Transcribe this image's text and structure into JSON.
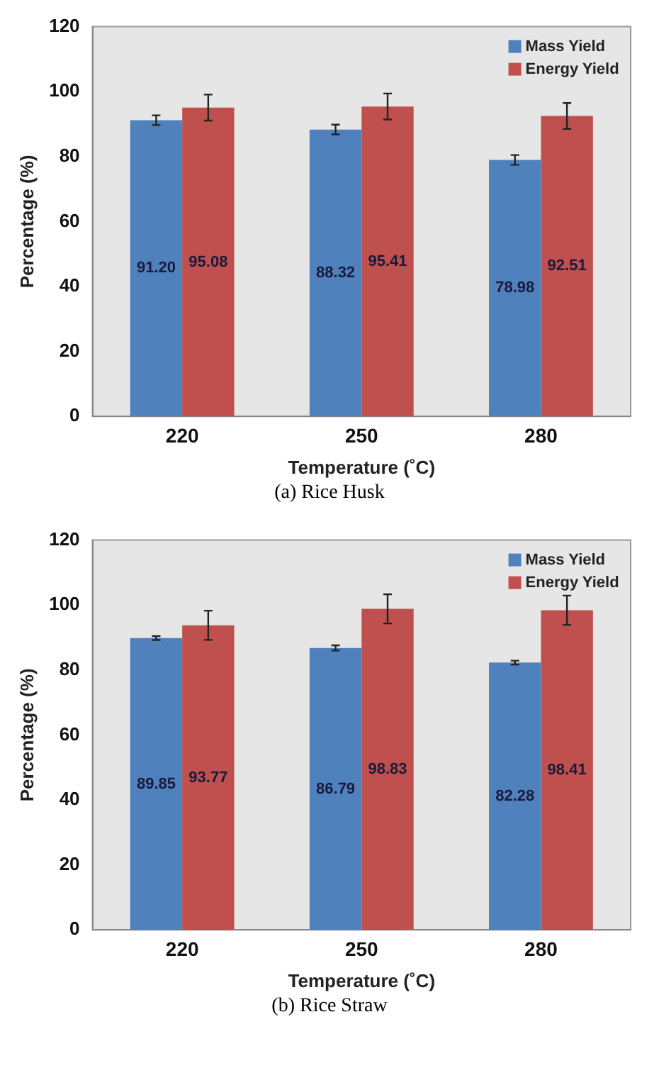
{
  "chart_data": [
    {
      "type": "bar",
      "xlabel": "Temperature (˚C)",
      "ylabel": "Percentage (%)",
      "categories": [
        "220",
        "250",
        "280"
      ],
      "series": [
        {
          "name": "Mass Yield",
          "color": "#4f81bd",
          "values": [
            91.2,
            88.32,
            78.98
          ],
          "value_labels": [
            "91.20",
            "88.32",
            "78.98"
          ],
          "errors": [
            1.5,
            1.5,
            1.5
          ]
        },
        {
          "name": "Energy Yield",
          "color": "#c0504d",
          "values": [
            95.08,
            95.41,
            92.51
          ],
          "value_labels": [
            "95.08",
            "95.41",
            "92.51"
          ],
          "errors": [
            4,
            4,
            4
          ]
        }
      ],
      "ylim": [
        0,
        120
      ],
      "yticks": [
        0,
        20,
        40,
        60,
        80,
        100,
        120
      ],
      "grid": false,
      "legend": "top right",
      "annotations": [
        "(a) Rice Husk"
      ]
    },
    {
      "type": "bar",
      "xlabel": "Temperature (˚C)",
      "ylabel": "Percentage (%)",
      "categories": [
        "220",
        "250",
        "280"
      ],
      "series": [
        {
          "name": "Mass Yield",
          "color": "#4f81bd",
          "values": [
            89.85,
            86.79,
            82.28
          ],
          "value_labels": [
            "89.85",
            "86.79",
            "82.28"
          ],
          "errors": [
            0.6,
            0.8,
            0.6
          ]
        },
        {
          "name": "Energy Yield",
          "color": "#c0504d",
          "values": [
            93.77,
            98.83,
            98.41
          ],
          "value_labels": [
            "93.77",
            "98.83",
            "98.41"
          ],
          "errors": [
            4.5,
            4.5,
            4.5
          ]
        }
      ],
      "ylim": [
        0,
        120
      ],
      "yticks": [
        0,
        20,
        40,
        60,
        80,
        100,
        120
      ],
      "grid": false,
      "legend": "top right",
      "annotations": [
        "(b) Rice Straw"
      ]
    }
  ]
}
